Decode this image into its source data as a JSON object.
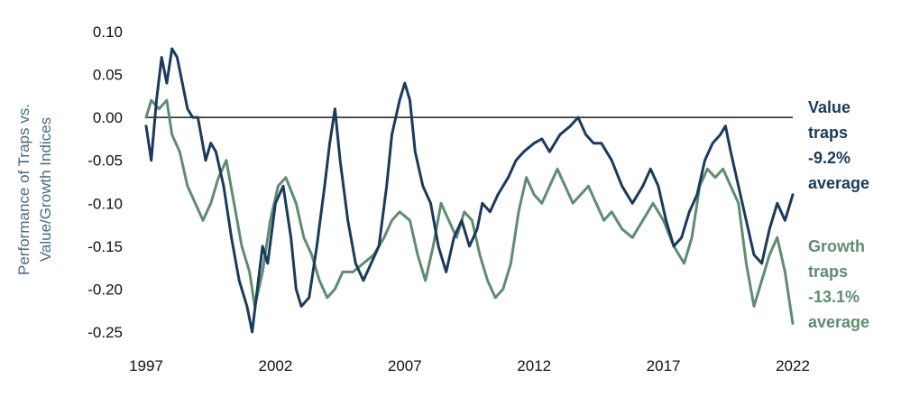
{
  "chart_data": {
    "type": "line",
    "ylabel_lines": [
      "Performance of Traps vs.",
      "Value/Growth Indices"
    ],
    "xlim": [
      1997,
      2022
    ],
    "ylim": [
      -0.25,
      0.1
    ],
    "x_ticks": [
      "1997",
      "2002",
      "2007",
      "2012",
      "2017",
      "2022"
    ],
    "y_ticks": [
      "0.10",
      "0.05",
      "0.00",
      "-0.05",
      "-0.10",
      "-0.15",
      "-0.20",
      "-0.25"
    ],
    "grid": false,
    "zero_line": true,
    "legend_placement": "right",
    "series": [
      {
        "name": "Value traps -9.2% average",
        "legend_lines": [
          "Value",
          "traps",
          "-9.2%",
          "average"
        ],
        "color": "#1b3a5c",
        "points": [
          [
            1997.0,
            -0.01
          ],
          [
            1997.2,
            -0.05
          ],
          [
            1997.4,
            0.02
          ],
          [
            1997.6,
            0.07
          ],
          [
            1997.8,
            0.04
          ],
          [
            1998.0,
            0.08
          ],
          [
            1998.2,
            0.07
          ],
          [
            1998.4,
            0.04
          ],
          [
            1998.6,
            0.01
          ],
          [
            1998.8,
            0.0
          ],
          [
            1999.0,
            0.0
          ],
          [
            1999.3,
            -0.05
          ],
          [
            1999.5,
            -0.03
          ],
          [
            1999.7,
            -0.04
          ],
          [
            2000.0,
            -0.08
          ],
          [
            2000.3,
            -0.14
          ],
          [
            2000.6,
            -0.19
          ],
          [
            2000.9,
            -0.22
          ],
          [
            2001.1,
            -0.25
          ],
          [
            2001.3,
            -0.2
          ],
          [
            2001.5,
            -0.15
          ],
          [
            2001.7,
            -0.17
          ],
          [
            2002.0,
            -0.1
          ],
          [
            2002.3,
            -0.08
          ],
          [
            2002.6,
            -0.14
          ],
          [
            2002.8,
            -0.2
          ],
          [
            2003.0,
            -0.22
          ],
          [
            2003.3,
            -0.21
          ],
          [
            2003.6,
            -0.15
          ],
          [
            2003.9,
            -0.08
          ],
          [
            2004.1,
            -0.03
          ],
          [
            2004.3,
            0.01
          ],
          [
            2004.5,
            -0.05
          ],
          [
            2004.8,
            -0.12
          ],
          [
            2005.1,
            -0.17
          ],
          [
            2005.4,
            -0.19
          ],
          [
            2005.7,
            -0.17
          ],
          [
            2006.0,
            -0.15
          ],
          [
            2006.3,
            -0.08
          ],
          [
            2006.5,
            -0.02
          ],
          [
            2006.8,
            0.02
          ],
          [
            2007.0,
            0.04
          ],
          [
            2007.2,
            0.02
          ],
          [
            2007.4,
            -0.04
          ],
          [
            2007.7,
            -0.08
          ],
          [
            2008.0,
            -0.1
          ],
          [
            2008.3,
            -0.15
          ],
          [
            2008.6,
            -0.18
          ],
          [
            2008.9,
            -0.14
          ],
          [
            2009.2,
            -0.12
          ],
          [
            2009.5,
            -0.15
          ],
          [
            2009.8,
            -0.13
          ],
          [
            2010.0,
            -0.1
          ],
          [
            2010.3,
            -0.11
          ],
          [
            2010.6,
            -0.09
          ],
          [
            2011.0,
            -0.07
          ],
          [
            2011.3,
            -0.05
          ],
          [
            2011.6,
            -0.04
          ],
          [
            2012.0,
            -0.03
          ],
          [
            2012.3,
            -0.025
          ],
          [
            2012.6,
            -0.04
          ],
          [
            2013.0,
            -0.02
          ],
          [
            2013.4,
            -0.01
          ],
          [
            2013.7,
            0.0
          ],
          [
            2014.0,
            -0.02
          ],
          [
            2014.3,
            -0.03
          ],
          [
            2014.6,
            -0.03
          ],
          [
            2015.0,
            -0.05
          ],
          [
            2015.4,
            -0.08
          ],
          [
            2015.8,
            -0.1
          ],
          [
            2016.2,
            -0.08
          ],
          [
            2016.5,
            -0.06
          ],
          [
            2016.8,
            -0.08
          ],
          [
            2017.1,
            -0.12
          ],
          [
            2017.4,
            -0.15
          ],
          [
            2017.7,
            -0.14
          ],
          [
            2018.0,
            -0.11
          ],
          [
            2018.3,
            -0.09
          ],
          [
            2018.6,
            -0.05
          ],
          [
            2018.9,
            -0.03
          ],
          [
            2019.2,
            -0.02
          ],
          [
            2019.4,
            -0.01
          ],
          [
            2019.6,
            -0.04
          ],
          [
            2019.9,
            -0.08
          ],
          [
            2020.2,
            -0.12
          ],
          [
            2020.5,
            -0.16
          ],
          [
            2020.8,
            -0.17
          ],
          [
            2021.1,
            -0.13
          ],
          [
            2021.4,
            -0.1
          ],
          [
            2021.7,
            -0.12
          ],
          [
            2022.0,
            -0.09
          ]
        ]
      },
      {
        "name": "Growth traps -13.1% average",
        "legend_lines": [
          "Growth",
          "traps",
          "-13.1%",
          "average"
        ],
        "color": "#5f8c72",
        "points": [
          [
            1997.0,
            0.0
          ],
          [
            1997.2,
            0.02
          ],
          [
            1997.5,
            0.01
          ],
          [
            1997.8,
            0.02
          ],
          [
            1998.0,
            -0.02
          ],
          [
            1998.3,
            -0.04
          ],
          [
            1998.6,
            -0.08
          ],
          [
            1998.9,
            -0.1
          ],
          [
            1999.2,
            -0.12
          ],
          [
            1999.5,
            -0.1
          ],
          [
            1999.8,
            -0.07
          ],
          [
            2000.1,
            -0.05
          ],
          [
            2000.4,
            -0.1
          ],
          [
            2000.7,
            -0.15
          ],
          [
            2001.0,
            -0.18
          ],
          [
            2001.2,
            -0.22
          ],
          [
            2001.5,
            -0.18
          ],
          [
            2001.8,
            -0.12
          ],
          [
            2002.1,
            -0.08
          ],
          [
            2002.4,
            -0.07
          ],
          [
            2002.8,
            -0.1
          ],
          [
            2003.1,
            -0.14
          ],
          [
            2003.4,
            -0.16
          ],
          [
            2003.7,
            -0.19
          ],
          [
            2004.0,
            -0.21
          ],
          [
            2004.3,
            -0.2
          ],
          [
            2004.6,
            -0.18
          ],
          [
            2005.0,
            -0.18
          ],
          [
            2005.4,
            -0.17
          ],
          [
            2005.8,
            -0.16
          ],
          [
            2006.2,
            -0.14
          ],
          [
            2006.5,
            -0.12
          ],
          [
            2006.8,
            -0.11
          ],
          [
            2007.2,
            -0.12
          ],
          [
            2007.5,
            -0.16
          ],
          [
            2007.8,
            -0.19
          ],
          [
            2008.1,
            -0.15
          ],
          [
            2008.4,
            -0.1
          ],
          [
            2008.7,
            -0.12
          ],
          [
            2009.0,
            -0.14
          ],
          [
            2009.3,
            -0.11
          ],
          [
            2009.6,
            -0.12
          ],
          [
            2009.9,
            -0.16
          ],
          [
            2010.2,
            -0.19
          ],
          [
            2010.5,
            -0.21
          ],
          [
            2010.8,
            -0.2
          ],
          [
            2011.1,
            -0.17
          ],
          [
            2011.4,
            -0.11
          ],
          [
            2011.7,
            -0.07
          ],
          [
            2012.0,
            -0.09
          ],
          [
            2012.3,
            -0.1
          ],
          [
            2012.6,
            -0.08
          ],
          [
            2012.9,
            -0.06
          ],
          [
            2013.2,
            -0.08
          ],
          [
            2013.5,
            -0.1
          ],
          [
            2013.8,
            -0.09
          ],
          [
            2014.1,
            -0.08
          ],
          [
            2014.4,
            -0.1
          ],
          [
            2014.7,
            -0.12
          ],
          [
            2015.0,
            -0.11
          ],
          [
            2015.4,
            -0.13
          ],
          [
            2015.8,
            -0.14
          ],
          [
            2016.2,
            -0.12
          ],
          [
            2016.6,
            -0.1
          ],
          [
            2017.0,
            -0.12
          ],
          [
            2017.4,
            -0.15
          ],
          [
            2017.8,
            -0.17
          ],
          [
            2018.1,
            -0.14
          ],
          [
            2018.4,
            -0.08
          ],
          [
            2018.7,
            -0.06
          ],
          [
            2019.0,
            -0.07
          ],
          [
            2019.3,
            -0.06
          ],
          [
            2019.6,
            -0.08
          ],
          [
            2019.9,
            -0.1
          ],
          [
            2020.2,
            -0.17
          ],
          [
            2020.5,
            -0.22
          ],
          [
            2020.8,
            -0.19
          ],
          [
            2021.1,
            -0.16
          ],
          [
            2021.4,
            -0.14
          ],
          [
            2021.7,
            -0.18
          ],
          [
            2022.0,
            -0.24
          ]
        ]
      }
    ]
  }
}
